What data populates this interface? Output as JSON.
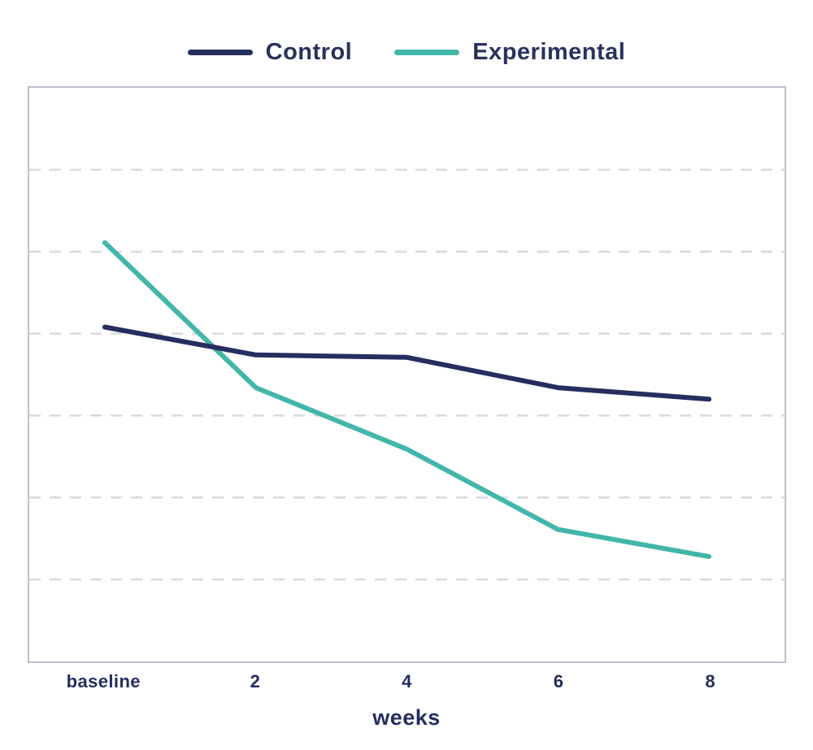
{
  "page": {
    "background": "#ffffff"
  },
  "legend": {
    "position": "top-center"
  },
  "chart_data": {
    "type": "line",
    "categories": [
      "baseline",
      "2",
      "4",
      "6",
      "8"
    ],
    "xlabel": "weeks",
    "ylabel": "",
    "y_axis_labels_visible": false,
    "ylim": [
      0,
      7
    ],
    "gridline_values": [
      1,
      2,
      3,
      4,
      5,
      6
    ],
    "grid": "dashed-horizontal-only",
    "legend_position": "top-center",
    "series": [
      {
        "name": "Control",
        "color": "#252e5e",
        "values": [
          4.08,
          3.74,
          3.71,
          3.34,
          3.2
        ]
      },
      {
        "name": "Experimental",
        "color": "#43b6aa",
        "values": [
          5.11,
          3.34,
          2.59,
          1.61,
          1.28
        ]
      }
    ],
    "colors": {
      "gridline": "#d9dae0",
      "plot_border": "#bcc0cc",
      "text": "#242e5e"
    },
    "line_width": 6
  }
}
